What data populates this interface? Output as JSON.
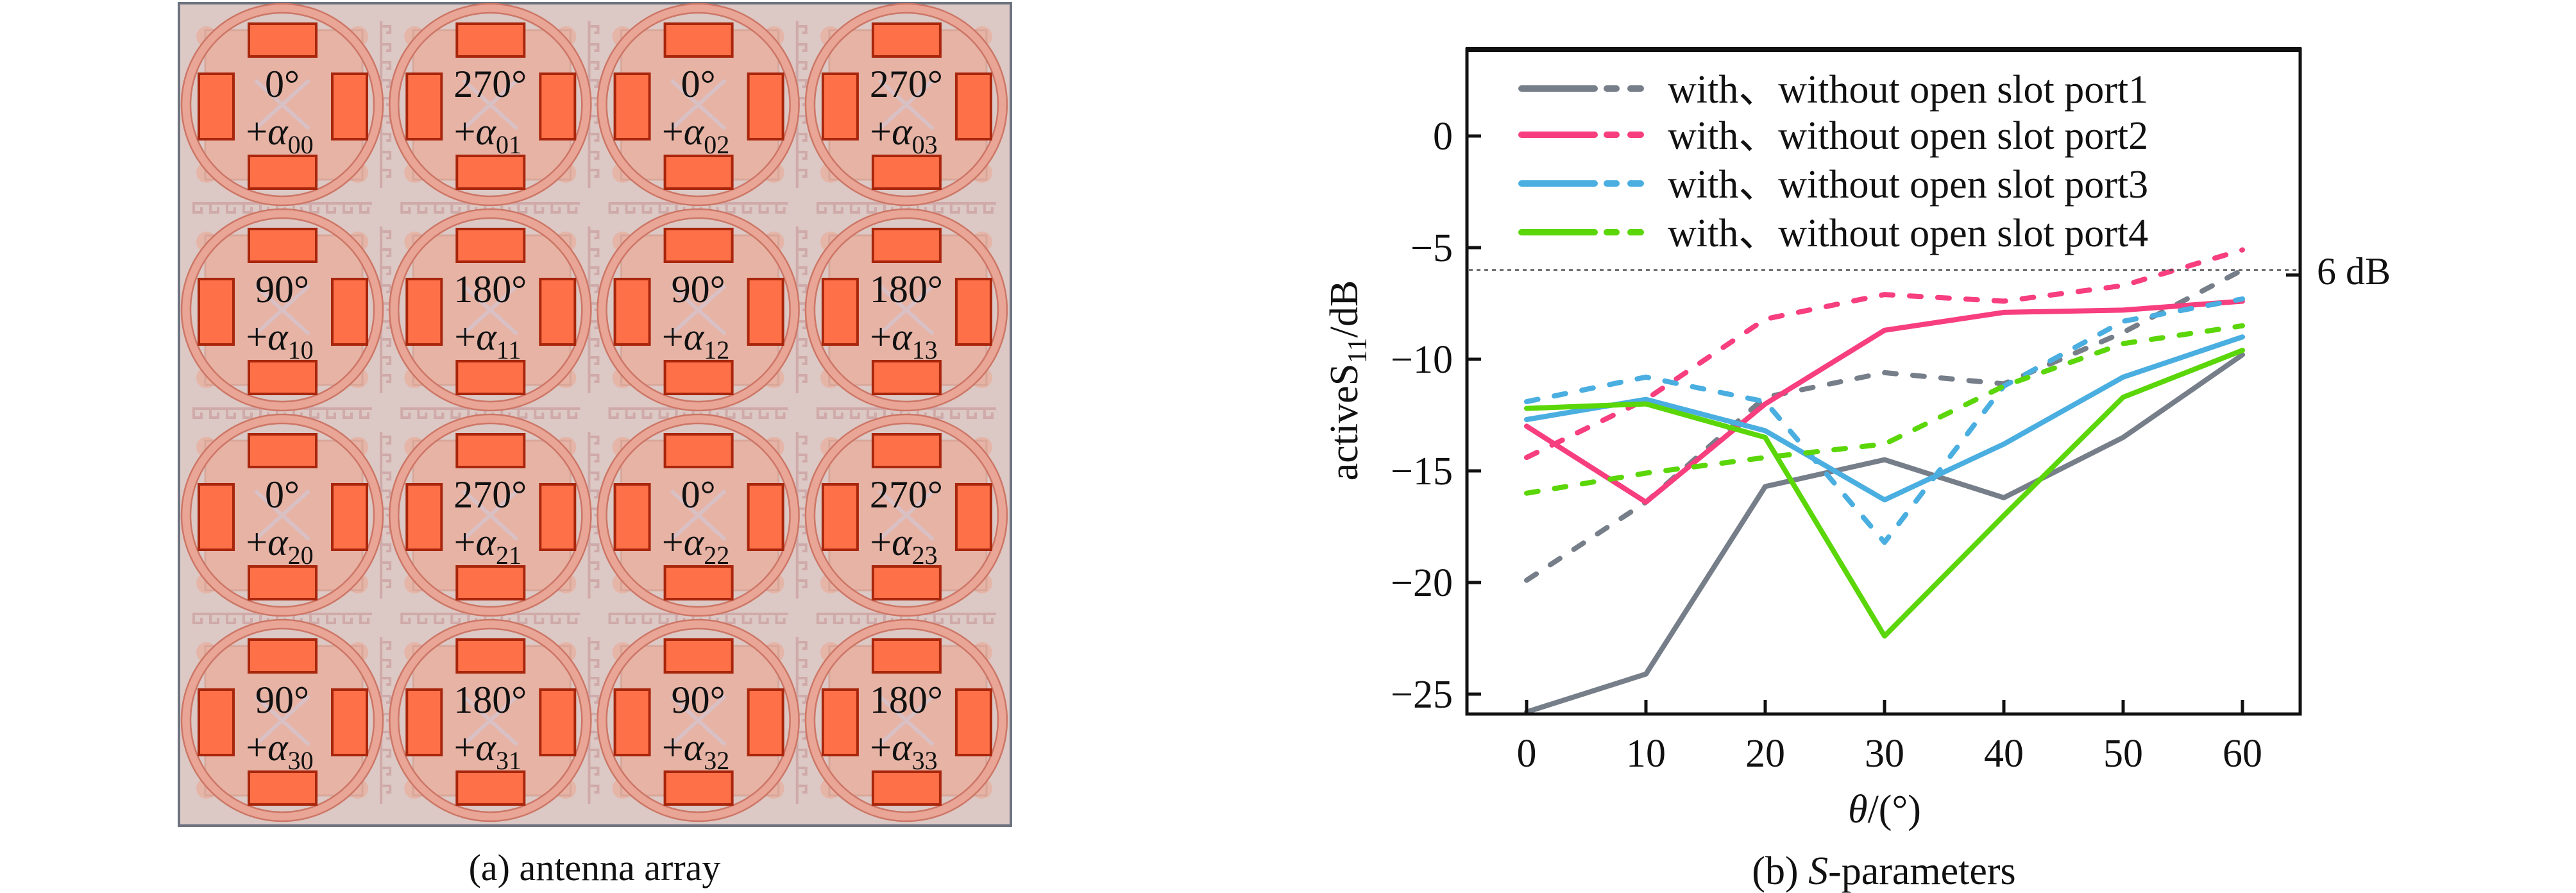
{
  "panel_a": {
    "caption": "(a) antenna array",
    "colors": {
      "substrate": "#dcc8c4",
      "substrate_border": "#6e7380",
      "ground_square": "#e6b3a5",
      "ring": "#e9a596",
      "ring_edge": "#cd7666",
      "patch": "#fe7048",
      "patch_border": "#a8260c",
      "meander": "#cfaaa9",
      "feed_cross": "#d9c0c4"
    },
    "cells": [
      [
        {
          "phase": "0°",
          "alpha_sub": "00"
        },
        {
          "phase": "270°",
          "alpha_sub": "01"
        },
        {
          "phase": "0°",
          "alpha_sub": "02"
        },
        {
          "phase": "270°",
          "alpha_sub": "03"
        }
      ],
      [
        {
          "phase": "90°",
          "alpha_sub": "10"
        },
        {
          "phase": "180°",
          "alpha_sub": "11"
        },
        {
          "phase": "90°",
          "alpha_sub": "12"
        },
        {
          "phase": "180°",
          "alpha_sub": "13"
        }
      ],
      [
        {
          "phase": "0°",
          "alpha_sub": "20"
        },
        {
          "phase": "270°",
          "alpha_sub": "21"
        },
        {
          "phase": "0°",
          "alpha_sub": "22"
        },
        {
          "phase": "270°",
          "alpha_sub": "23"
        }
      ],
      [
        {
          "phase": "90°",
          "alpha_sub": "30"
        },
        {
          "phase": "180°",
          "alpha_sub": "31"
        },
        {
          "phase": "90°",
          "alpha_sub": "32"
        },
        {
          "phase": "180°",
          "alpha_sub": "33"
        }
      ]
    ],
    "alpha_prefix": "+α"
  },
  "panel_b": {
    "caption_prefix": "(b) ",
    "caption_italic": "S",
    "caption_suffix": "-parameters"
  },
  "chart_data": {
    "type": "line",
    "title": "",
    "xlabel_italic": "θ",
    "xlabel_rest": "/(°)",
    "ylabel_main": "activeS",
    "ylabel_sub": "11",
    "ylabel_unit": "/dB",
    "x": [
      0,
      10,
      20,
      30,
      40,
      50,
      60
    ],
    "xlim": [
      -5,
      65
    ],
    "ylim": [
      -26,
      4
    ],
    "xticks": [
      0,
      10,
      20,
      30,
      40,
      50,
      60
    ],
    "yticks": [
      0,
      -5,
      -10,
      -15,
      -20,
      -25
    ],
    "ytick_labels": [
      "0",
      "−5",
      "−10",
      "−15",
      "−20",
      "−25"
    ],
    "grid": false,
    "legend_position": "top-left",
    "reference_line": {
      "y": -6,
      "label": "6 dB",
      "style": "dotted"
    },
    "series": [
      {
        "name": "port1 with open slot",
        "port": 1,
        "variant": "with",
        "style": "solid",
        "color": "#767e89",
        "values": [
          -25.8,
          -24.1,
          -15.7,
          -14.5,
          -16.2,
          -13.5,
          -9.8
        ]
      },
      {
        "name": "port1 without open slot",
        "port": 1,
        "variant": "without",
        "style": "dashed",
        "color": "#767e89",
        "values": [
          -19.9,
          -16.4,
          -11.7,
          -10.6,
          -11.1,
          -8.8,
          -6.0
        ]
      },
      {
        "name": "port2 with open slot",
        "port": 2,
        "variant": "with",
        "style": "solid",
        "color": "#f73e7e",
        "values": [
          -13.0,
          -16.4,
          -12.0,
          -8.7,
          -7.9,
          -7.8,
          -7.4
        ]
      },
      {
        "name": "port2 without open slot",
        "port": 2,
        "variant": "without",
        "style": "dashed",
        "color": "#f73e7e",
        "values": [
          -14.4,
          -11.8,
          -8.2,
          -7.1,
          -7.4,
          -6.7,
          -5.1
        ]
      },
      {
        "name": "port3 with open slot",
        "port": 3,
        "variant": "with",
        "style": "solid",
        "color": "#4aaee0",
        "values": [
          -12.7,
          -11.8,
          -13.2,
          -16.3,
          -13.8,
          -10.8,
          -9.0
        ]
      },
      {
        "name": "port3 without open slot",
        "port": 3,
        "variant": "without",
        "style": "dashed",
        "color": "#4aaee0",
        "values": [
          -11.9,
          -10.8,
          -11.9,
          -18.2,
          -11.2,
          -8.3,
          -7.3
        ]
      },
      {
        "name": "port4 with open slot",
        "port": 4,
        "variant": "with",
        "style": "solid",
        "color": "#5bd608",
        "values": [
          -12.2,
          -12.0,
          -13.5,
          -22.4,
          -17.0,
          -11.7,
          -9.6
        ]
      },
      {
        "name": "port4 without open slot",
        "port": 4,
        "variant": "without",
        "style": "dashed",
        "color": "#5bd608",
        "values": [
          -16.0,
          -15.1,
          -14.4,
          -13.8,
          -11.2,
          -9.3,
          -8.5
        ]
      }
    ],
    "legend": [
      {
        "label": "with、without open slot port1",
        "color": "#767e89"
      },
      {
        "label": "with、without open slot port2",
        "color": "#f73e7e"
      },
      {
        "label": "with、without open slot port3",
        "color": "#4aaee0"
      },
      {
        "label": "with、without open slot port4",
        "color": "#5bd608"
      }
    ]
  }
}
